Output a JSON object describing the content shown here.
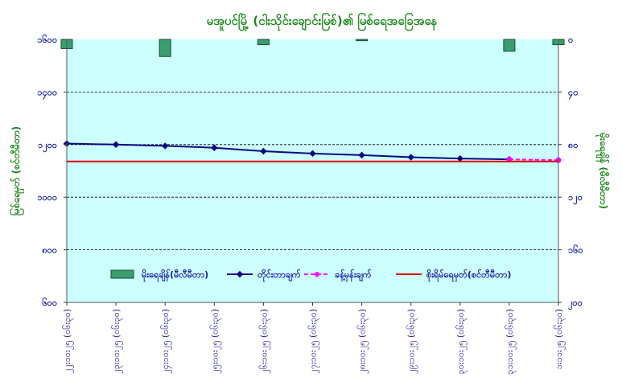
{
  "chart_data": {
    "type": "bar+line",
    "title": "မအူပင်မြို့ (ငါးသိုင်းချောင်းမြစ်)၏ မြစ်ရေအခြေအနေ",
    "left_axis": {
      "label": "မြစ်ရေမှတ် (စင်တီမီတာ)",
      "ticks": [
        "၆၀၀",
        "၈၀၀",
        "၁၀၀၀",
        "၁၂၀၀",
        "၁၄၀၀",
        "၁၆၀၀"
      ],
      "range": [
        600,
        1600
      ]
    },
    "right_axis": {
      "label": "မိုးရေချိန် (မီလီမီတာ)",
      "ticks": [
        "၀",
        "၄၀",
        "၈၀",
        "၁၂၀",
        "၁၆၀",
        "၂၀၀"
      ],
      "range": [
        0,
        200
      ],
      "inverted": true
    },
    "categories": [
      "၂၂း၁၀း၂၅ (၀၆း၃၀)",
      "၂၃း၁၀း၂၅ (၀၆း၃၀)",
      "၂၄း၁၀း၂၅ (၀၆း၃၀)",
      "၂၅း၁၀း၂၅ (၀၆း၃၀)",
      "၂၆း၁၀း၂၅ (၀၆း၃၀)",
      "၂၇း၁၀း၂၅ (၀၆း၃၀)",
      "၂၈း၁၀း၂၅ (၀၆း၃၀)",
      "၂၉း၁၀း၂၅ (၀၆း၃၀)",
      "၃၀း၁၀း၂၅ (၀၆း၃၀)",
      "၃၁း၁၀း၂၅ (၀၆း၃၀)",
      "၁း၁၁း၂၅ (၀၆း၃၀)"
    ],
    "series": [
      {
        "name": "မိုးရေချိန်(မီလီမီတာ)",
        "type": "bar",
        "axis": "right",
        "color": "#3a9e6e",
        "values": [
          7,
          0,
          13,
          0,
          4,
          0,
          1,
          0,
          0,
          9,
          4
        ]
      },
      {
        "name": "တိုင်းတာချက်",
        "type": "line",
        "axis": "left",
        "color": "#0a0a80",
        "values": [
          1204,
          1200,
          1195,
          1188,
          1175,
          1166,
          1160,
          1152,
          1147,
          1144,
          null
        ]
      },
      {
        "name": "ခန့်မှန်းချက်",
        "type": "line-dashed",
        "axis": "left",
        "color": "#ff00ff",
        "values": [
          null,
          null,
          null,
          null,
          null,
          null,
          null,
          null,
          null,
          1144,
          1141
        ]
      },
      {
        "name": "စိုးရိမ်ရေမှတ်(စင်တီမီတာ)",
        "type": "hline",
        "axis": "left",
        "color": "#e00000",
        "value": 1136
      }
    ],
    "grid": "horizontal dashed",
    "legend": "bottom",
    "plot_background": "#ccffff"
  }
}
